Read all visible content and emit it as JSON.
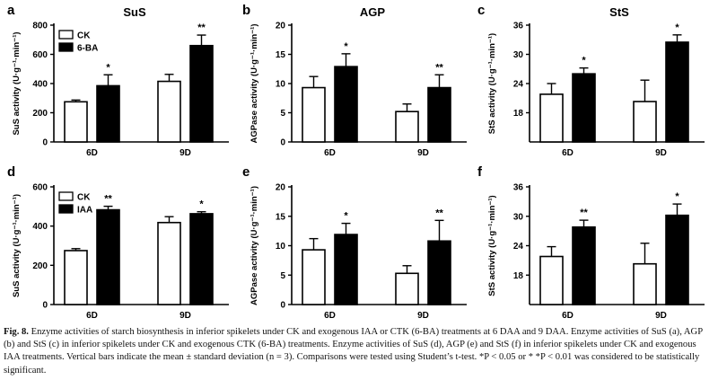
{
  "caption": {
    "label": "Fig. 8.",
    "text": "Enzyme activities of starch biosynthesis in inferior spikelets under CK and exogenous IAA or CTK (6-BA) treatments at 6 DAA and 9 DAA. Enzyme activities of SuS (a), AGP (b) and StS (c) in inferior spikelets under CK and exogenous CTK (6-BA) treatments. Enzyme activities of SuS (d), AGP (e) and StS (f) in inferior spikelets under CK and exogenous IAA treatments. Vertical bars indicate the mean ± standard deviation (n = 3). Comparisons were tested using Student’s t-test. *P < 0.05 or * *P < 0.01 was considered to be statistically significant."
  },
  "colors": {
    "ck": "#ffffff",
    "treated": "#000000",
    "axis": "#000000"
  },
  "chart_data": [
    {
      "panel": "a",
      "type": "bar",
      "title": "SuS",
      "ylabel": "SuS activity (U·g⁻¹·min⁻¹)",
      "categories": [
        "6D",
        "9D"
      ],
      "ylim": [
        0,
        800
      ],
      "yticks": [
        0,
        200,
        400,
        600,
        800
      ],
      "legend": [
        "CK",
        "6-BA"
      ],
      "legend_position": "top-left",
      "series": [
        {
          "name": "CK",
          "values": [
            275,
            415
          ],
          "errors": [
            12,
            48
          ]
        },
        {
          "name": "6-BA",
          "values": [
            385,
            660
          ],
          "errors": [
            75,
            72
          ]
        }
      ],
      "significance": [
        "*",
        "**"
      ]
    },
    {
      "panel": "b",
      "type": "bar",
      "title": "AGP",
      "ylabel": "AGPase activity (U·g⁻¹·min⁻¹)",
      "categories": [
        "6D",
        "9D"
      ],
      "ylim": [
        0,
        20
      ],
      "yticks": [
        0,
        5,
        10,
        15,
        20
      ],
      "series": [
        {
          "name": "CK",
          "values": [
            9.3,
            5.2
          ],
          "errors": [
            1.9,
            1.3
          ]
        },
        {
          "name": "6-BA",
          "values": [
            12.9,
            9.3
          ],
          "errors": [
            2.2,
            2.2
          ]
        }
      ],
      "significance": [
        "*",
        "**"
      ]
    },
    {
      "panel": "c",
      "type": "bar",
      "title": "StS",
      "ylabel": "StS activity (U·g⁻¹·min⁻¹)",
      "categories": [
        "6D",
        "9D"
      ],
      "ylim": [
        12,
        36
      ],
      "yticks": [
        18,
        24,
        30,
        36
      ],
      "series": [
        {
          "name": "CK",
          "values": [
            21.8,
            20.3
          ],
          "errors": [
            2.2,
            4.4
          ]
        },
        {
          "name": "6-BA",
          "values": [
            26.0,
            32.5
          ],
          "errors": [
            1.2,
            1.5
          ]
        }
      ],
      "significance": [
        "*",
        "*"
      ]
    },
    {
      "panel": "d",
      "type": "bar",
      "title": "",
      "ylabel": "SuS activity (U·g⁻¹·min⁻¹)",
      "categories": [
        "6D",
        "9D"
      ],
      "ylim": [
        0,
        600
      ],
      "yticks": [
        0,
        200,
        400,
        600
      ],
      "legend": [
        "CK",
        "IAA"
      ],
      "legend_position": "top-left",
      "series": [
        {
          "name": "CK",
          "values": [
            275,
            418
          ],
          "errors": [
            10,
            30
          ]
        },
        {
          "name": "IAA",
          "values": [
            483,
            463
          ],
          "errors": [
            18,
            10
          ]
        }
      ],
      "significance": [
        "**",
        "*"
      ]
    },
    {
      "panel": "e",
      "type": "bar",
      "title": "",
      "ylabel": "AGPase activity (U·g⁻¹·min⁻¹)",
      "categories": [
        "6D",
        "9D"
      ],
      "ylim": [
        0,
        20
      ],
      "yticks": [
        0,
        5,
        10,
        15,
        20
      ],
      "series": [
        {
          "name": "CK",
          "values": [
            9.3,
            5.3
          ],
          "errors": [
            1.9,
            1.3
          ]
        },
        {
          "name": "IAA",
          "values": [
            11.9,
            10.8
          ],
          "errors": [
            1.9,
            3.5
          ]
        }
      ],
      "significance": [
        "*",
        "**"
      ]
    },
    {
      "panel": "f",
      "type": "bar",
      "title": "",
      "ylabel": "StS activity (U·g⁻¹·min⁻¹)",
      "categories": [
        "6D",
        "9D"
      ],
      "ylim": [
        12,
        36
      ],
      "yticks": [
        18,
        24,
        30,
        36
      ],
      "series": [
        {
          "name": "CK",
          "values": [
            21.8,
            20.3
          ],
          "errors": [
            2.0,
            4.2
          ]
        },
        {
          "name": "IAA",
          "values": [
            27.8,
            30.2
          ],
          "errors": [
            1.4,
            2.3
          ]
        }
      ],
      "significance": [
        "**",
        "*"
      ]
    }
  ]
}
